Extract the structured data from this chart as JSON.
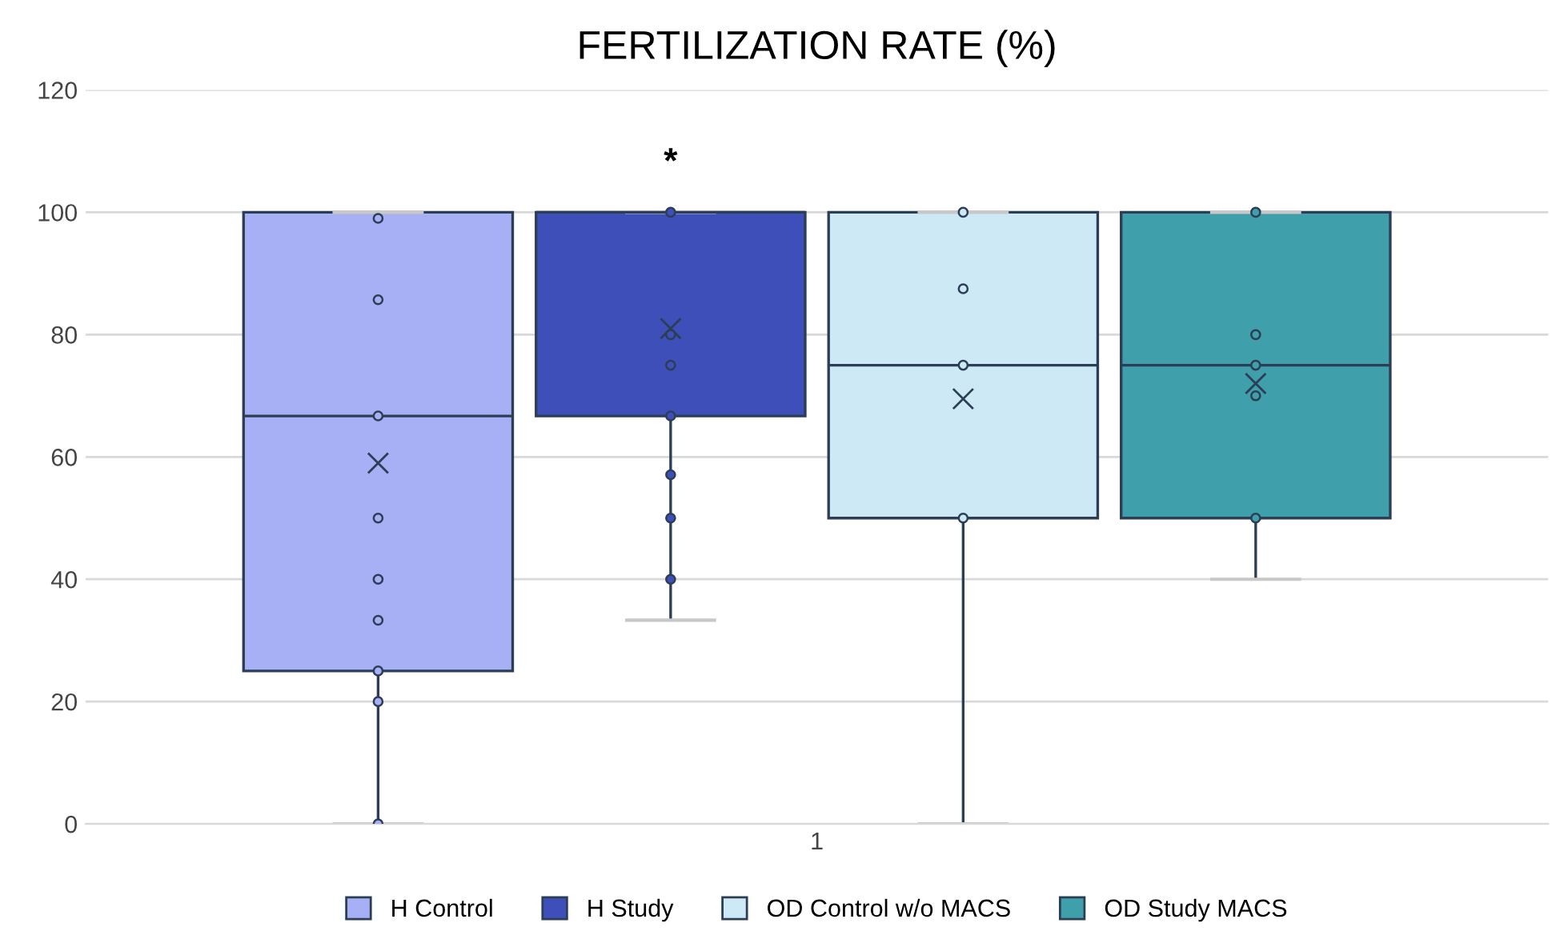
{
  "chart_data": {
    "type": "box",
    "title": "FERTILIZATION RATE (%)",
    "categories": [
      "1"
    ],
    "series": [
      {
        "name": "H Control",
        "color": "#a7b0f5",
        "boxes": [
          {
            "low": 0,
            "q1": 25,
            "median": 66.7,
            "q3": 100,
            "high": 100,
            "mean": 59
          }
        ]
      },
      {
        "type": "scatter",
        "color": "#a7b0f5",
        "x": [
          "1",
          "1",
          "1",
          "1",
          "1",
          "1",
          "1",
          "1",
          "1"
        ],
        "values": [
          0,
          20,
          25,
          33.3,
          40,
          50,
          66.7,
          85.7,
          99
        ]
      },
      {
        "name": "H Study",
        "color": "#3f4fba",
        "boxes": [
          {
            "low": 33.3,
            "q1": 66.7,
            "median": 100,
            "q3": 100,
            "high": 100,
            "mean": 81
          }
        ]
      },
      {
        "type": "scatter",
        "color": "#3f4fba",
        "x": [
          "1",
          "1",
          "1",
          "1",
          "1",
          "1",
          "1"
        ],
        "values": [
          40,
          50,
          57.1,
          66.7,
          75,
          80,
          100
        ]
      },
      {
        "name": "OD Control w/o MACS",
        "color": "#cde9f6",
        "boxes": [
          {
            "low": 0,
            "q1": 50,
            "median": 75,
            "q3": 100,
            "high": 100,
            "mean": 69.5
          }
        ]
      },
      {
        "type": "scatter",
        "color": "#cde9f6",
        "x": [
          "1",
          "1",
          "1",
          "1"
        ],
        "values": [
          50,
          75,
          87.5,
          100
        ]
      },
      {
        "name": "OD Study MACS",
        "color": "#3f9fab",
        "boxes": [
          {
            "low": 40,
            "q1": 50,
            "median": 75,
            "q3": 100,
            "high": 100,
            "mean": 72
          }
        ]
      },
      {
        "type": "scatter",
        "color": "#3f9fab",
        "x": [
          "1",
          "1",
          "1",
          "1",
          "1"
        ],
        "values": [
          50,
          70,
          75,
          80,
          100
        ]
      }
    ],
    "annotations": [
      "*"
    ],
    "ylim": [
      0,
      120
    ],
    "yticks": [
      0,
      20,
      40,
      60,
      80,
      100,
      120
    ],
    "grid": "y",
    "legend": "bottom"
  }
}
